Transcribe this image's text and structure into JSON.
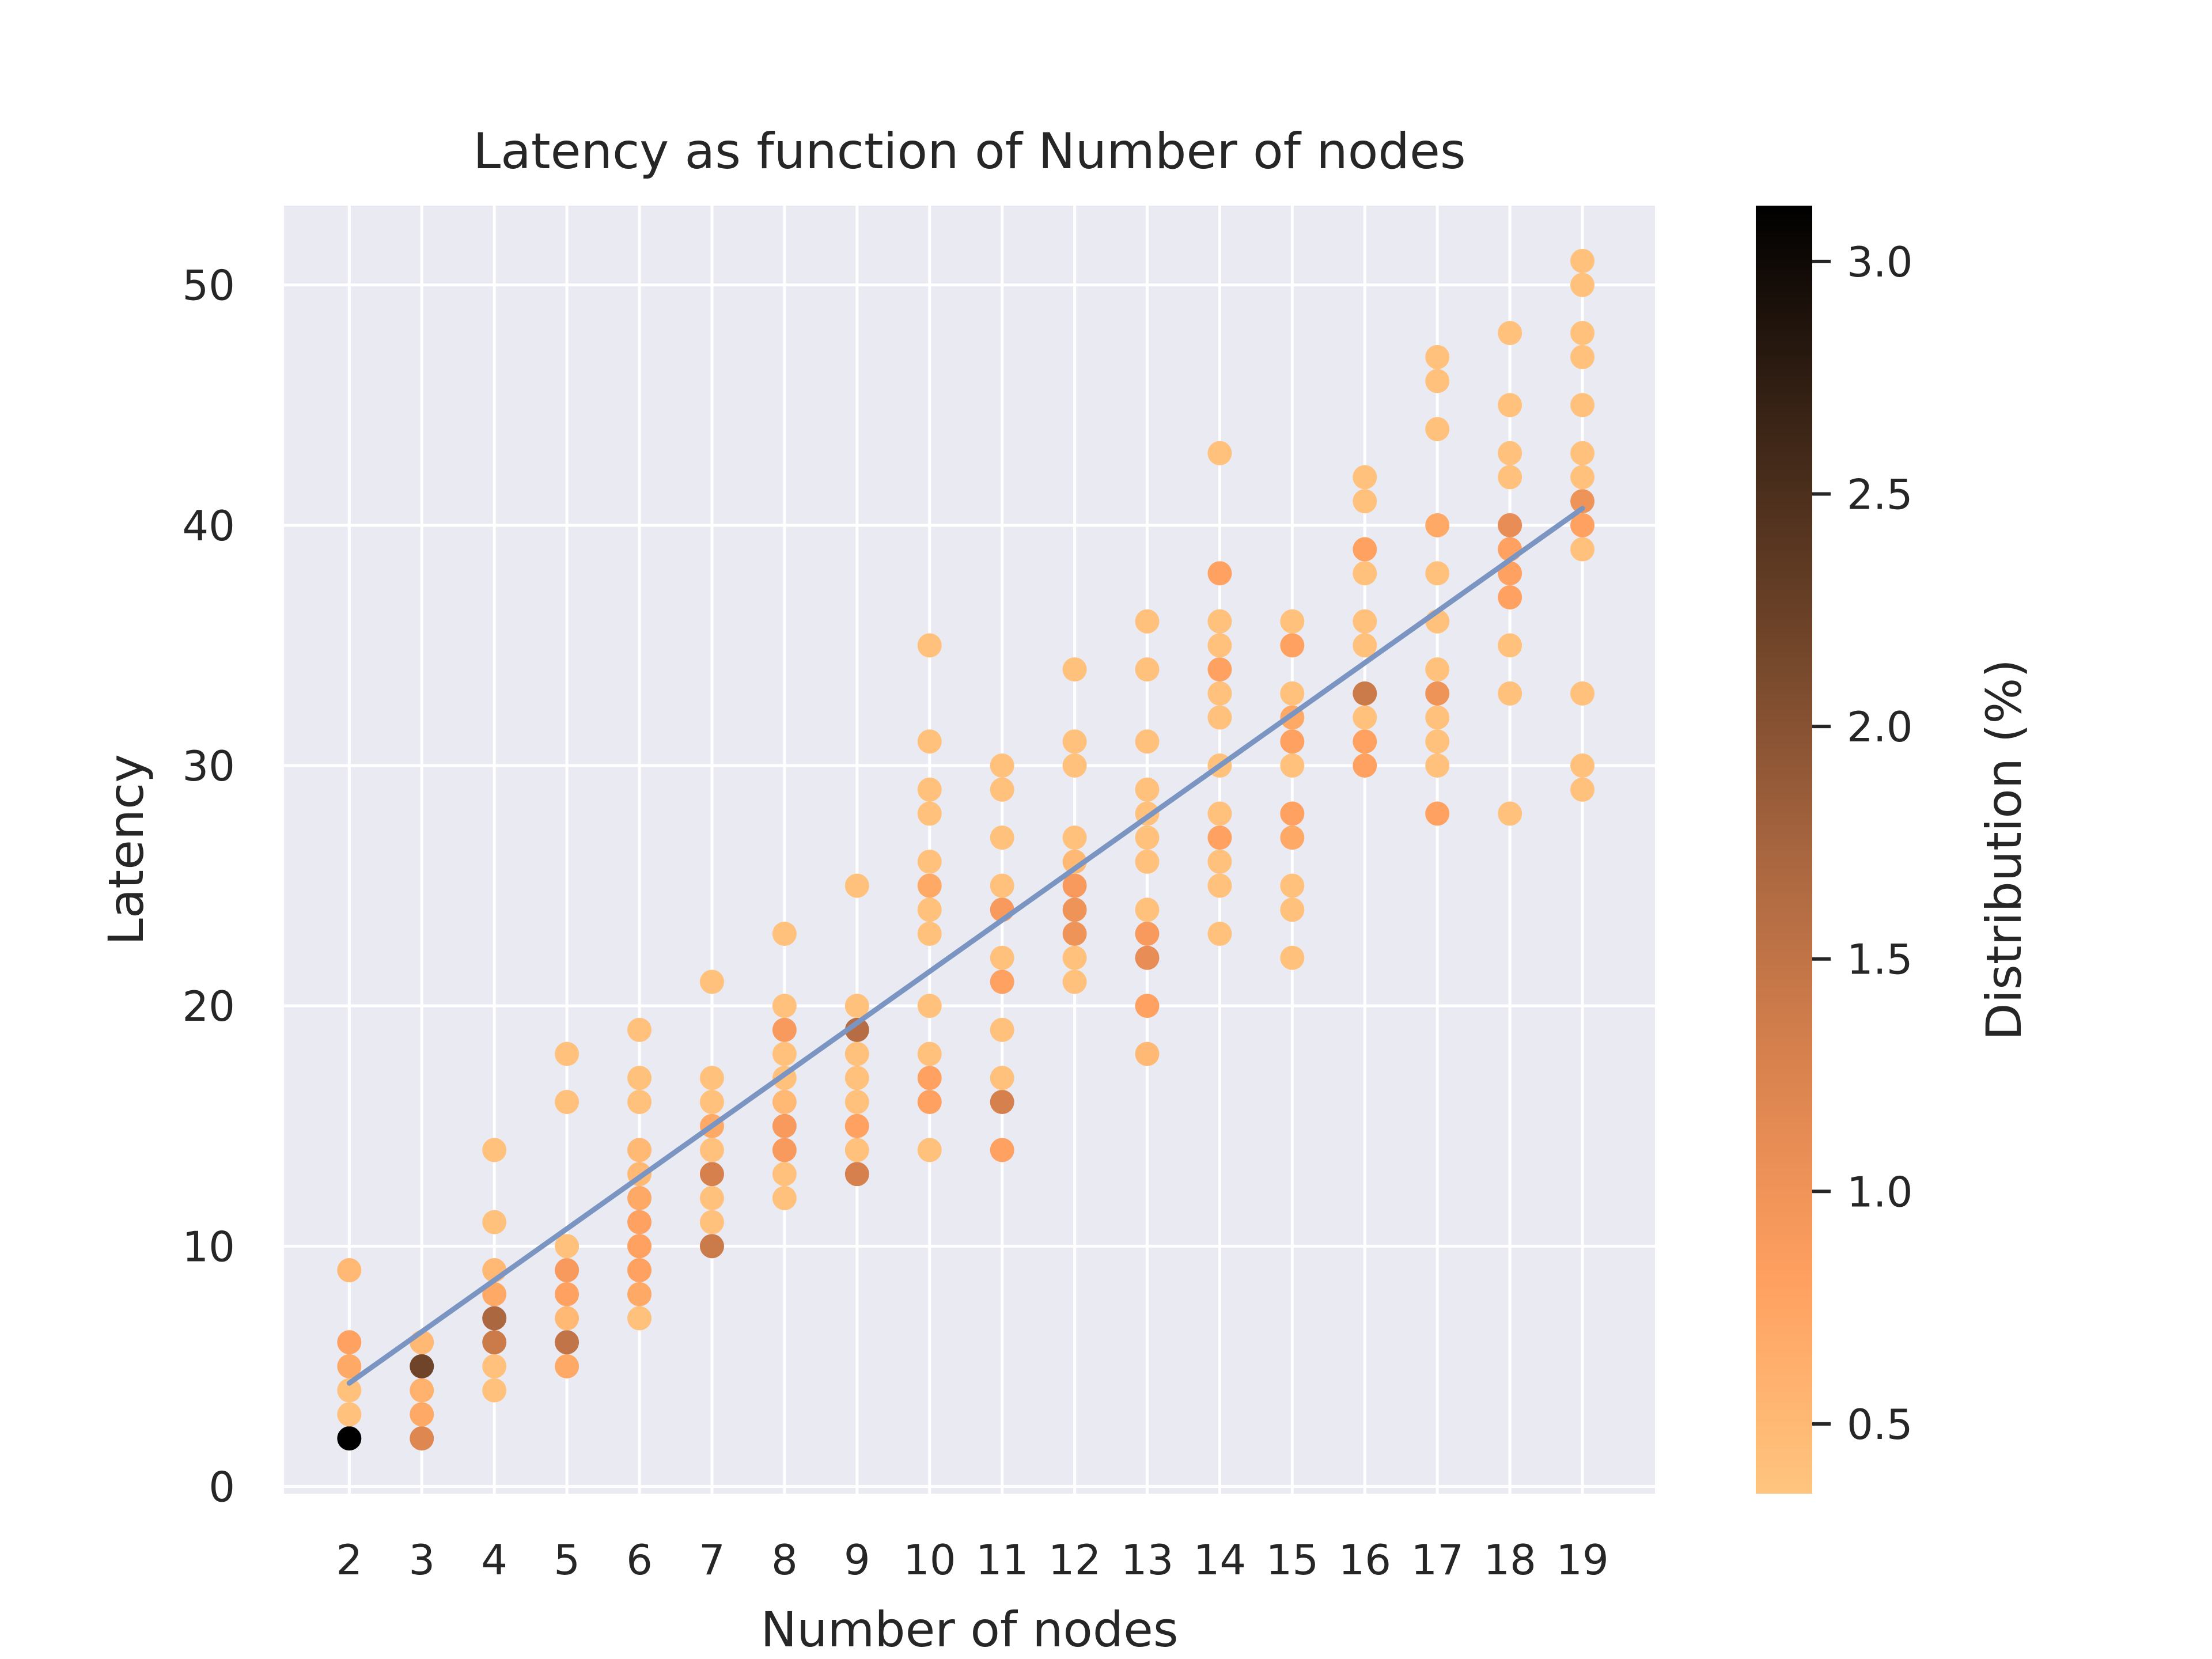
{
  "chart_data": {
    "type": "scatter",
    "title": "Latency as function of Number of nodes",
    "xlabel": "Number of nodes",
    "ylabel": "Latency",
    "x_ticks": [
      2,
      3,
      4,
      5,
      6,
      7,
      8,
      9,
      10,
      11,
      12,
      13,
      14,
      15,
      16,
      17,
      18,
      19
    ],
    "y_ticks": [
      0,
      10,
      20,
      30,
      40,
      50
    ],
    "xlim": [
      1.1,
      20.0
    ],
    "ylim": [
      -0.3,
      53.3
    ],
    "grid": true,
    "colorbar": {
      "label": "Distribution (%)",
      "ticks": [
        0.5,
        1.0,
        1.5,
        2.0,
        2.5,
        3.0
      ],
      "range": [
        0.35,
        3.12
      ],
      "colors": [
        "#ffc57f",
        "#ffa060",
        "#d9824e",
        "#a7653f",
        "#6f4429",
        "#3a2416",
        "#000000"
      ]
    },
    "trend_line": {
      "x": [
        2,
        19
      ],
      "y": [
        4.3,
        40.7
      ],
      "color": "#7b95c2"
    },
    "points": [
      [
        2,
        2,
        3.12
      ],
      [
        2,
        3,
        0.4
      ],
      [
        2,
        4,
        0.4
      ],
      [
        2,
        5,
        0.7
      ],
      [
        2,
        6,
        0.8
      ],
      [
        2,
        9,
        0.5
      ],
      [
        3,
        2,
        1.2
      ],
      [
        3,
        3,
        0.7
      ],
      [
        3,
        4,
        0.6
      ],
      [
        3,
        5,
        2.2
      ],
      [
        3,
        6,
        0.5
      ],
      [
        4,
        4,
        0.4
      ],
      [
        4,
        5,
        0.4
      ],
      [
        4,
        6,
        1.4
      ],
      [
        4,
        7,
        1.7
      ],
      [
        4,
        8,
        0.7
      ],
      [
        4,
        9,
        0.5
      ],
      [
        4,
        11,
        0.4
      ],
      [
        4,
        14,
        0.4
      ],
      [
        5,
        5,
        0.7
      ],
      [
        5,
        6,
        1.5
      ],
      [
        5,
        7,
        0.5
      ],
      [
        5,
        8,
        0.8
      ],
      [
        5,
        9,
        0.9
      ],
      [
        5,
        10,
        0.4
      ],
      [
        5,
        16,
        0.4
      ],
      [
        5,
        18,
        0.4
      ],
      [
        6,
        7,
        0.4
      ],
      [
        6,
        8,
        0.7
      ],
      [
        6,
        9,
        0.8
      ],
      [
        6,
        10,
        0.8
      ],
      [
        6,
        11,
        0.8
      ],
      [
        6,
        12,
        0.7
      ],
      [
        6,
        13,
        0.5
      ],
      [
        6,
        14,
        0.5
      ],
      [
        6,
        16,
        0.4
      ],
      [
        6,
        17,
        0.4
      ],
      [
        6,
        19,
        0.4
      ],
      [
        7,
        10,
        1.4
      ],
      [
        7,
        11,
        0.4
      ],
      [
        7,
        12,
        0.4
      ],
      [
        7,
        13,
        1.3
      ],
      [
        7,
        14,
        0.4
      ],
      [
        7,
        15,
        0.7
      ],
      [
        7,
        16,
        0.4
      ],
      [
        7,
        17,
        0.4
      ],
      [
        7,
        21,
        0.4
      ],
      [
        8,
        12,
        0.4
      ],
      [
        8,
        13,
        0.4
      ],
      [
        8,
        14,
        0.9
      ],
      [
        8,
        15,
        0.9
      ],
      [
        8,
        16,
        0.5
      ],
      [
        8,
        17,
        0.4
      ],
      [
        8,
        18,
        0.4
      ],
      [
        8,
        19,
        0.9
      ],
      [
        8,
        20,
        0.4
      ],
      [
        8,
        23,
        0.4
      ],
      [
        9,
        13,
        1.3
      ],
      [
        9,
        14,
        0.4
      ],
      [
        9,
        15,
        0.8
      ],
      [
        9,
        16,
        0.4
      ],
      [
        9,
        17,
        0.4
      ],
      [
        9,
        18,
        0.4
      ],
      [
        9,
        19,
        1.6
      ],
      [
        9,
        20,
        0.4
      ],
      [
        9,
        25,
        0.4
      ],
      [
        10,
        14,
        0.4
      ],
      [
        10,
        16,
        0.8
      ],
      [
        10,
        17,
        0.8
      ],
      [
        10,
        18,
        0.4
      ],
      [
        10,
        20,
        0.4
      ],
      [
        10,
        23,
        0.4
      ],
      [
        10,
        24,
        0.4
      ],
      [
        10,
        25,
        0.7
      ],
      [
        10,
        26,
        0.4
      ],
      [
        10,
        28,
        0.4
      ],
      [
        10,
        29,
        0.4
      ],
      [
        10,
        31,
        0.4
      ],
      [
        10,
        35,
        0.4
      ],
      [
        11,
        14,
        0.8
      ],
      [
        11,
        16,
        1.3
      ],
      [
        11,
        17,
        0.4
      ],
      [
        11,
        19,
        0.4
      ],
      [
        11,
        21,
        0.8
      ],
      [
        11,
        22,
        0.4
      ],
      [
        11,
        24,
        0.9
      ],
      [
        11,
        25,
        0.4
      ],
      [
        11,
        27,
        0.4
      ],
      [
        11,
        29,
        0.4
      ],
      [
        11,
        30,
        0.4
      ],
      [
        12,
        21,
        0.4
      ],
      [
        12,
        22,
        0.4
      ],
      [
        12,
        23,
        1.0
      ],
      [
        12,
        24,
        1.0
      ],
      [
        12,
        25,
        0.9
      ],
      [
        12,
        26,
        0.5
      ],
      [
        12,
        27,
        0.4
      ],
      [
        12,
        30,
        0.4
      ],
      [
        12,
        31,
        0.4
      ],
      [
        12,
        34,
        0.4
      ],
      [
        13,
        18,
        0.5
      ],
      [
        13,
        20,
        0.8
      ],
      [
        13,
        22,
        1.1
      ],
      [
        13,
        23,
        0.9
      ],
      [
        13,
        24,
        0.4
      ],
      [
        13,
        26,
        0.4
      ],
      [
        13,
        27,
        0.4
      ],
      [
        13,
        28,
        0.4
      ],
      [
        13,
        29,
        0.4
      ],
      [
        13,
        31,
        0.4
      ],
      [
        13,
        34,
        0.4
      ],
      [
        13,
        36,
        0.4
      ],
      [
        14,
        23,
        0.4
      ],
      [
        14,
        25,
        0.4
      ],
      [
        14,
        26,
        0.4
      ],
      [
        14,
        27,
        0.8
      ],
      [
        14,
        28,
        0.4
      ],
      [
        14,
        30,
        0.4
      ],
      [
        14,
        32,
        0.4
      ],
      [
        14,
        33,
        0.4
      ],
      [
        14,
        34,
        0.8
      ],
      [
        14,
        35,
        0.4
      ],
      [
        14,
        36,
        0.4
      ],
      [
        14,
        38,
        0.8
      ],
      [
        14,
        43,
        0.4
      ],
      [
        15,
        22,
        0.4
      ],
      [
        15,
        24,
        0.4
      ],
      [
        15,
        25,
        0.4
      ],
      [
        15,
        27,
        0.7
      ],
      [
        15,
        28,
        0.8
      ],
      [
        15,
        30,
        0.4
      ],
      [
        15,
        31,
        0.8
      ],
      [
        15,
        32,
        0.7
      ],
      [
        15,
        33,
        0.4
      ],
      [
        15,
        35,
        0.8
      ],
      [
        15,
        36,
        0.4
      ],
      [
        16,
        30,
        0.8
      ],
      [
        16,
        31,
        0.8
      ],
      [
        16,
        32,
        0.4
      ],
      [
        16,
        33,
        1.4
      ],
      [
        16,
        35,
        0.4
      ],
      [
        16,
        36,
        0.4
      ],
      [
        16,
        38,
        0.4
      ],
      [
        16,
        39,
        0.8
      ],
      [
        16,
        41,
        0.4
      ],
      [
        16,
        42,
        0.4
      ],
      [
        17,
        28,
        0.8
      ],
      [
        17,
        30,
        0.4
      ],
      [
        17,
        31,
        0.4
      ],
      [
        17,
        32,
        0.4
      ],
      [
        17,
        33,
        1.0
      ],
      [
        17,
        34,
        0.4
      ],
      [
        17,
        36,
        0.4
      ],
      [
        17,
        38,
        0.4
      ],
      [
        17,
        40,
        0.7
      ],
      [
        17,
        44,
        0.4
      ],
      [
        17,
        46,
        0.4
      ],
      [
        17,
        47,
        0.4
      ],
      [
        18,
        28,
        0.4
      ],
      [
        18,
        33,
        0.4
      ],
      [
        18,
        35,
        0.4
      ],
      [
        18,
        37,
        0.8
      ],
      [
        18,
        38,
        0.8
      ],
      [
        18,
        39,
        0.8
      ],
      [
        18,
        40,
        1.1
      ],
      [
        18,
        42,
        0.4
      ],
      [
        18,
        43,
        0.4
      ],
      [
        18,
        45,
        0.4
      ],
      [
        18,
        48,
        0.4
      ],
      [
        19,
        29,
        0.4
      ],
      [
        19,
        30,
        0.4
      ],
      [
        19,
        33,
        0.4
      ],
      [
        19,
        39,
        0.4
      ],
      [
        19,
        40,
        0.8
      ],
      [
        19,
        41,
        1.0
      ],
      [
        19,
        42,
        0.4
      ],
      [
        19,
        43,
        0.4
      ],
      [
        19,
        45,
        0.4
      ],
      [
        19,
        47,
        0.4
      ],
      [
        19,
        48,
        0.4
      ],
      [
        19,
        50,
        0.4
      ],
      [
        19,
        51,
        0.4
      ]
    ],
    "plot_background": "#eaeaf2",
    "grid_color": "#ffffff"
  }
}
